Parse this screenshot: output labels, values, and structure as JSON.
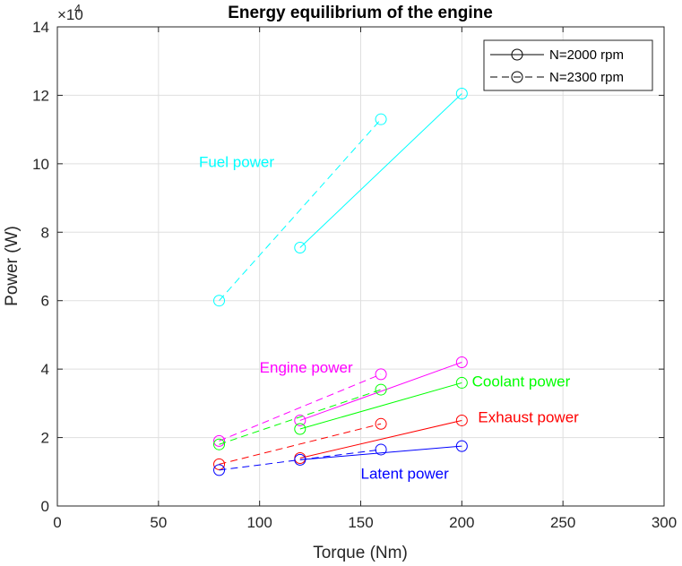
{
  "chart_data": {
    "type": "line",
    "title": "Energy equilibrium of the engine",
    "xlabel": "Torque (Nm)",
    "ylabel": "Power (W)",
    "xlim": [
      0,
      300
    ],
    "ylim": [
      0,
      140000
    ],
    "xticks": [
      0,
      50,
      100,
      150,
      200,
      250,
      300
    ],
    "yticks": [
      0,
      20000,
      40000,
      60000,
      80000,
      100000,
      120000,
      140000
    ],
    "ytick_labels": [
      "0",
      "2",
      "4",
      "6",
      "8",
      "10",
      "12",
      "14"
    ],
    "y_exponent_base": "×10",
    "y_exponent_power": "4",
    "grid": true,
    "legend": {
      "position": "top-right",
      "entries": [
        {
          "label": "N=2000 rpm",
          "style": "solid"
        },
        {
          "label": "N=2300 rpm",
          "style": "dashed"
        }
      ]
    },
    "series": [
      {
        "group": "Fuel power",
        "speed": "N=2000 rpm",
        "style": "solid",
        "color": "#00FFFF",
        "x": [
          120,
          200
        ],
        "y": [
          75500,
          120500
        ]
      },
      {
        "group": "Fuel power",
        "speed": "N=2300 rpm",
        "style": "dashed",
        "color": "#00FFFF",
        "x": [
          80,
          160
        ],
        "y": [
          60000,
          113000
        ]
      },
      {
        "group": "Engine power",
        "speed": "N=2000 rpm",
        "style": "solid",
        "color": "#FF00FF",
        "x": [
          120,
          200
        ],
        "y": [
          25000,
          42000
        ]
      },
      {
        "group": "Engine power",
        "speed": "N=2300 rpm",
        "style": "dashed",
        "color": "#FF00FF",
        "x": [
          80,
          160
        ],
        "y": [
          19000,
          38500
        ]
      },
      {
        "group": "Coolant power",
        "speed": "N=2000 rpm",
        "style": "solid",
        "color": "#00FF00",
        "x": [
          120,
          200
        ],
        "y": [
          22500,
          36000
        ]
      },
      {
        "group": "Coolant power",
        "speed": "N=2300 rpm",
        "style": "dashed",
        "color": "#00FF00",
        "x": [
          80,
          160
        ],
        "y": [
          18000,
          34000
        ]
      },
      {
        "group": "Exhaust power",
        "speed": "N=2000 rpm",
        "style": "solid",
        "color": "#FF0000",
        "x": [
          120,
          200
        ],
        "y": [
          14000,
          25000
        ]
      },
      {
        "group": "Exhaust power",
        "speed": "N=2300 rpm",
        "style": "dashed",
        "color": "#FF0000",
        "x": [
          80,
          160
        ],
        "y": [
          12200,
          24000
        ]
      },
      {
        "group": "Latent power",
        "speed": "N=2000 rpm",
        "style": "solid",
        "color": "#0000FF",
        "x": [
          120,
          200
        ],
        "y": [
          13500,
          17500
        ]
      },
      {
        "group": "Latent power",
        "speed": "N=2300 rpm",
        "style": "dashed",
        "color": "#0000FF",
        "x": [
          80,
          160
        ],
        "y": [
          10500,
          16500
        ]
      }
    ],
    "annotations": [
      {
        "text": "Fuel power",
        "x": 70,
        "y": 99000,
        "color": "#00FFFF"
      },
      {
        "text": "Engine power",
        "x": 100,
        "y": 39000,
        "color": "#FF00FF"
      },
      {
        "text": "Coolant power",
        "x": 205,
        "y": 35000,
        "color": "#00FF00"
      },
      {
        "text": "Exhaust power",
        "x": 208,
        "y": 24500,
        "color": "#FF0000"
      },
      {
        "text": "Latent power",
        "x": 150,
        "y": 8000,
        "color": "#0000FF"
      }
    ]
  }
}
